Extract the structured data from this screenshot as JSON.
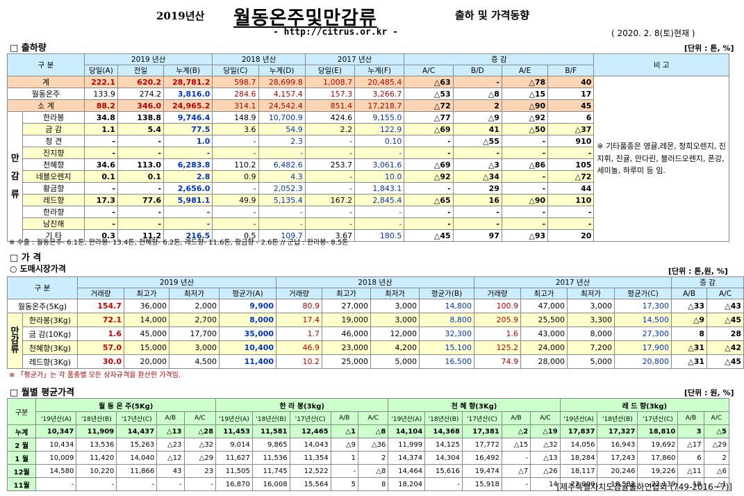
{
  "header": {
    "year": "2019년산",
    "title": "월동온주및만감류",
    "subtitle": "출하 및 가격동향",
    "url": "- http://citrus.or.kr -",
    "date": "( 2020. 2. 8(토)현재 )"
  },
  "s1": {
    "title": "□ 출하량",
    "unit": "[단위 : 톤, %]",
    "h1": [
      "구 분",
      "2019 년산",
      "2018 년산",
      "2017 년산",
      "증 감",
      "비 고"
    ],
    "h2": [
      "당일(A)",
      "전일",
      "누계(B)",
      "당일(C)",
      "누계(D)",
      "당일(E)",
      "누계(F)",
      "A/C",
      "B/D",
      "A/E",
      "B/F"
    ],
    "total": {
      "label": "계",
      "v": [
        "222.1",
        "620.2",
        "28,781.2",
        "598.7",
        "28,699.8",
        "1,008.7",
        "20,485.4",
        "△63",
        "-",
        "△78",
        "40"
      ]
    },
    "onju": {
      "label": "월동온주",
      "v": [
        "133.9",
        "274.2",
        "3,816.0",
        "284.6",
        "4,157.4",
        "157.3",
        "3,266.7",
        "△53",
        "△8",
        "△15",
        "17"
      ]
    },
    "sub": {
      "label": "소 계",
      "v": [
        "88.2",
        "346.0",
        "24,965.2",
        "314.1",
        "24,542.4",
        "851.4",
        "17,218.7",
        "△72",
        "2",
        "△90",
        "45"
      ]
    },
    "side": "만 감 류",
    "items": [
      {
        "label": "한라봉",
        "v": [
          "34.8",
          "138.8",
          "9,746.4",
          "148.9",
          "10,700.9",
          "424.6",
          "9,155.0",
          "△77",
          "△9",
          "△92",
          "6"
        ]
      },
      {
        "label": "금 감",
        "v": [
          "1.1",
          "5.4",
          "77.5",
          "3.6",
          "54.9",
          "2.2",
          "122.9",
          "△69",
          "41",
          "△50",
          "△37"
        ]
      },
      {
        "label": "청 견",
        "v": [
          "-",
          "-",
          "1.0",
          "-",
          "2.3",
          "-",
          "0.10",
          "-",
          "△55",
          "-",
          "910"
        ]
      },
      {
        "label": "진지향",
        "v": [
          "-",
          "-",
          "-",
          "-",
          "-",
          "-",
          "-",
          "-",
          "-",
          "-",
          "-"
        ]
      },
      {
        "label": "천혜향",
        "v": [
          "34.6",
          "113.0",
          "6,283.8",
          "110.2",
          "6,482.6",
          "253.7",
          "3,061.6",
          "△69",
          "△3",
          "△86",
          "105"
        ]
      },
      {
        "label": "네블오렌지",
        "v": [
          "0.1",
          "0.1",
          "2.8",
          "0.9",
          "4.3",
          "-",
          "10.0",
          "△92",
          "△34",
          "-",
          "△72"
        ]
      },
      {
        "label": "황금향",
        "v": [
          "-",
          "-",
          "2,656.0",
          "-",
          "2,052.3",
          "-",
          "1,843.1",
          "-",
          "29",
          "-",
          "44"
        ]
      },
      {
        "label": "레드향",
        "v": [
          "17.3",
          "77.6",
          "5,981.1",
          "49.9",
          "5,135.4",
          "167.2",
          "2,845.4",
          "△65",
          "16",
          "△90",
          "110"
        ]
      },
      {
        "label": "한라향",
        "v": [
          "-",
          "-",
          "-",
          "-",
          "-",
          "-",
          "-",
          "-",
          "-",
          "-",
          "-"
        ]
      },
      {
        "label": "남진해",
        "v": [
          "-",
          "-",
          "-",
          "-",
          "-",
          "-",
          "-",
          "-",
          "-",
          "-",
          "-"
        ]
      },
      {
        "label": "기 타",
        "v": [
          "0.3",
          "11.2",
          "216.5",
          "0.5",
          "109.7",
          "3.67",
          "180.5",
          "△45",
          "97",
          "△93",
          "20"
        ]
      }
    ],
    "remark": "※ 기타품종은 영귤,레몬, 청희오렌지, 진지휘, 진귤, 만다린, 블러드오렌지, 폰강,세미놀, 하루미 등 임.",
    "note": "※ 수출 : 월동온주- 6.1톤, 한라봉- 13.4톤, 천혜향- 6.2톤, 레드향- 11.6톤, 황금향 - 2.6톤 // 군납 : 한라봉- 8.5톤"
  },
  "s2": {
    "title": "□ 가 격",
    "subtitle": "○ 도매시장가격",
    "unit": "[단위 : 톤,원, %]",
    "h1": [
      "구 분",
      "2019 년산",
      "2018 년산",
      "2017 년산",
      "증 감"
    ],
    "h2": [
      "거래량",
      "최고가",
      "최저가",
      "평균가(A)",
      "거래량",
      "최고가",
      "최저가",
      "평균가(B)",
      "거래량",
      "최고가",
      "최저가",
      "평균가(C)",
      "A/B",
      "A/C"
    ],
    "onju": {
      "label": "월동온주(5Kg)",
      "v": [
        "154.7",
        "36,000",
        "2,000",
        "9,900",
        "80.9",
        "27,000",
        "3,000",
        "14,800",
        "100.9",
        "47,000",
        "3,000",
        "17,300",
        "△33",
        "△43"
      ]
    },
    "side": "만 감 류",
    "items": [
      {
        "label": "한라봉(3Kg)",
        "v": [
          "72.1",
          "14,000",
          "2,700",
          "8,000",
          "17.4",
          "19,000",
          "3,000",
          "8,800",
          "205.9",
          "25,500",
          "3,300",
          "14,500",
          "△9",
          "△45"
        ]
      },
      {
        "label": "금 감(10Kg)",
        "v": [
          "1.6",
          "45,000",
          "17,700",
          "35,000",
          "1.7",
          "46,000",
          "12,000",
          "32,300",
          "1.6",
          "43,000",
          "8,000",
          "27,300",
          "8",
          "28"
        ]
      },
      {
        "label": "천혜향(3Kg)",
        "v": [
          "57.0",
          "15,000",
          "3,000",
          "10,400",
          "46.9",
          "23,000",
          "4,200",
          "15,100",
          "125.2",
          "24,000",
          "7,200",
          "17,900",
          "△31",
          "△42"
        ]
      },
      {
        "label": "레드향(3Kg)",
        "v": [
          "30.0",
          "20,000",
          "4,500",
          "11,400",
          "10.2",
          "25,000",
          "5,000",
          "16,500",
          "74.9",
          "28,000",
          "5,000",
          "20,800",
          "△31",
          "△45"
        ]
      }
    ],
    "note": "※ 「평균가」는 각 품종별 모든 상자규격을 환산한 가격임."
  },
  "s3": {
    "title": "□ 월별 평균가격",
    "unit": "[단위 : 원, %]",
    "h1": [
      "구분",
      "월 동 온 주(5Kg)",
      "한 라 봉(3kg)",
      "천 혜 향(3Kg)",
      "레 드 향(3kg)"
    ],
    "h2": [
      "'19년산(A)",
      "'18년산(B)",
      "'17년산(C)",
      "A/B",
      "A/C"
    ],
    "rows": [
      {
        "label": "누계",
        "v": [
          "10,347",
          "11,909",
          "14,437",
          "△13",
          "△28",
          "11,453",
          "11,581",
          "12,465",
          "△1",
          "△8",
          "14,104",
          "14,368",
          "17,381",
          "△2",
          "△19",
          "17,837",
          "17,327",
          "18,810",
          "3",
          "△5"
        ]
      },
      {
        "label": "2 월",
        "v": [
          "10,434",
          "13,536",
          "15,263",
          "△23",
          "△32",
          "9,014",
          "9,865",
          "14,043",
          "△9",
          "△36",
          "11,999",
          "14,125",
          "17,772",
          "△15",
          "△32",
          "14,056",
          "16,943",
          "19,692",
          "△17",
          "△29"
        ]
      },
      {
        "label": "1 월",
        "v": [
          "10,009",
          "11,420",
          "14,040",
          "△12",
          "△29",
          "11,627",
          "11,536",
          "11,354",
          "1",
          "2",
          "14,374",
          "14,304",
          "16,492",
          "-",
          "△13",
          "18,284",
          "17,243",
          "17,860",
          "6",
          "2"
        ]
      },
      {
        "label": "12월",
        "v": [
          "14,580",
          "10,220",
          "11,866",
          "43",
          "23",
          "11,505",
          "11,745",
          "12,522",
          "-",
          "△8",
          "14,464",
          "15,616",
          "19,474",
          "△7",
          "△26",
          "18,117",
          "20,246",
          "19,226",
          "△11",
          "△6"
        ]
      },
      {
        "label": "11월",
        "v": [
          "-",
          "-",
          "-",
          "-",
          "-",
          "16,870",
          "16,008",
          "15,564",
          "5",
          "8",
          "18,204",
          "-",
          "15,918",
          "-",
          "14",
          "22,000",
          "18,582",
          "22,139",
          "18",
          "△1"
        ]
      }
    ]
  },
  "footer": "[제주특별자치도감귤출하연합회 (749-2016~7)]"
}
